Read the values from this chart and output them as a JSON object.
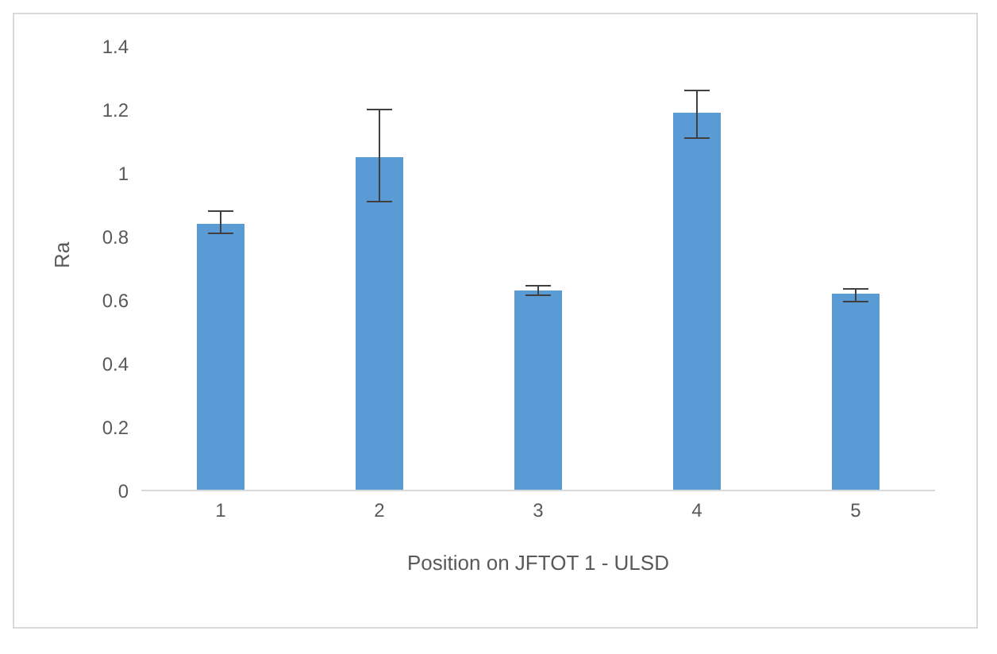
{
  "chart_data": {
    "type": "bar",
    "xlabel": "Position on JFTOT 1 - ULSD",
    "ylabel": "Ra",
    "categories": [
      "1",
      "2",
      "3",
      "4",
      "5"
    ],
    "values": [
      0.84,
      1.05,
      0.63,
      1.19,
      0.62
    ],
    "errors": [
      [
        0.81,
        0.88
      ],
      [
        0.91,
        1.2
      ],
      [
        0.615,
        0.645
      ],
      [
        1.11,
        1.26
      ],
      [
        0.595,
        0.635
      ]
    ],
    "color": "#5b9bd5",
    "ylim": [
      0,
      1.4
    ],
    "yticks": [
      0,
      0.2,
      0.4,
      0.6,
      0.8,
      1,
      1.2,
      1.4
    ],
    "grid": false
  }
}
